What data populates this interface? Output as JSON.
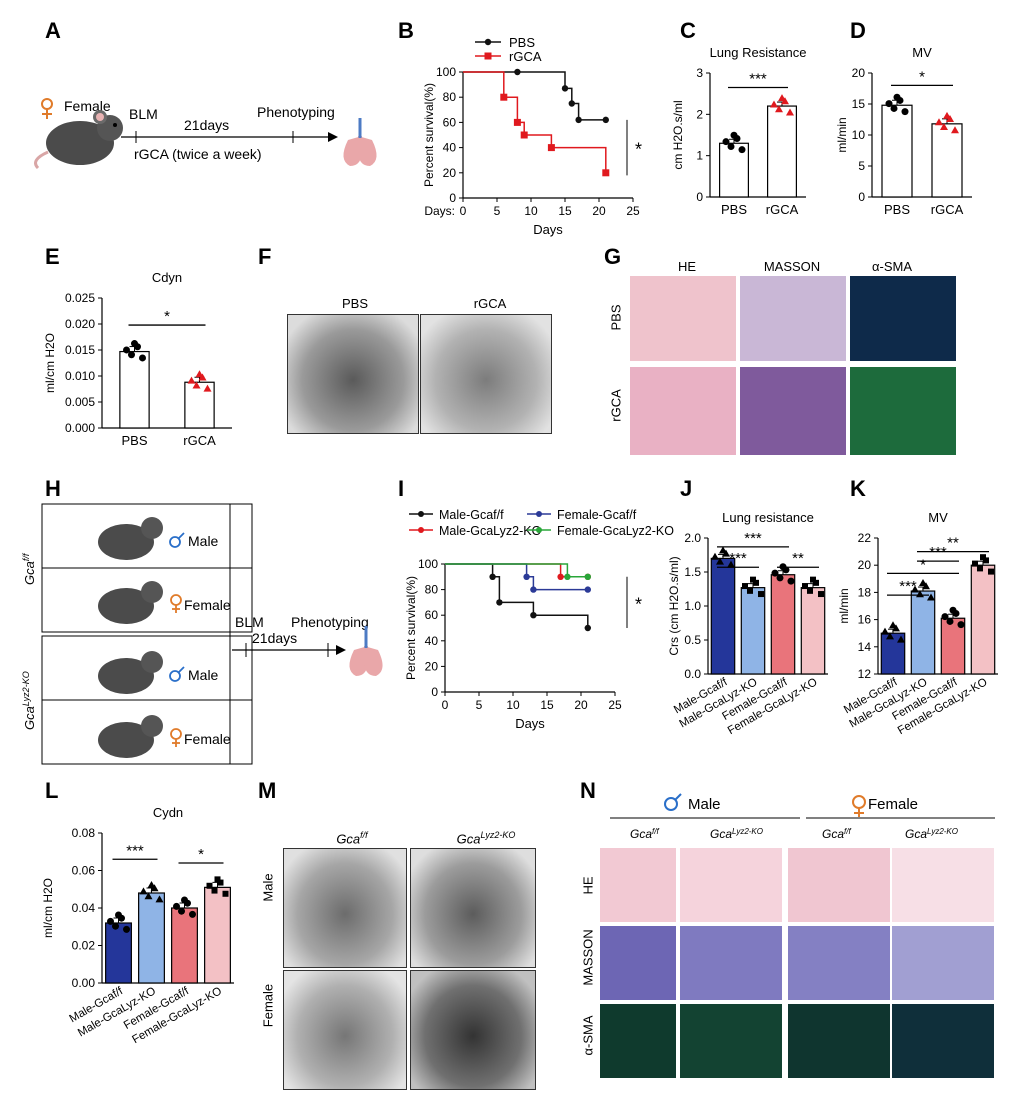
{
  "panels": {
    "A": "A",
    "B": "B",
    "C": "C",
    "D": "D",
    "E": "E",
    "F": "F",
    "G": "G",
    "H": "H",
    "I": "I",
    "J": "J",
    "K": "K",
    "L": "L",
    "M": "M",
    "N": "N"
  },
  "panelA": {
    "sex": "Female",
    "blm": "BLM",
    "duration": "21days",
    "phenotyping": "Phenotyping",
    "treatment": "rGCA (twice a week)"
  },
  "panelB": {
    "chart_data": {
      "type": "line",
      "xlabel": "Days",
      "ylabel": "Percent survival(%)",
      "xprefix": "Days:",
      "xticks": [
        0,
        5,
        10,
        15,
        20,
        25
      ],
      "yticks": [
        0,
        20,
        40,
        60,
        80,
        100
      ],
      "xlim": [
        0,
        25
      ],
      "ylim": [
        0,
        100
      ],
      "series": [
        {
          "name": "PBS",
          "color": "#111111",
          "x": [
            0,
            8,
            15,
            16,
            17,
            21
          ],
          "y": [
            100,
            100,
            87,
            75,
            62,
            62
          ]
        },
        {
          "name": "rGCA",
          "color": "#e0191e",
          "x": [
            0,
            6,
            8,
            9,
            13,
            21
          ],
          "y": [
            100,
            80,
            60,
            50,
            40,
            20
          ]
        }
      ],
      "significance": "*"
    }
  },
  "panelC": {
    "chart_data": {
      "type": "bar",
      "title": "Lung Resistance",
      "ylabel": "cm H2O.s/ml",
      "categories": [
        "PBS",
        "rGCA"
      ],
      "values": [
        1.3,
        2.2
      ],
      "ylim": [
        0,
        3
      ],
      "yticks": [
        0,
        1,
        2,
        3
      ],
      "significance": "***"
    }
  },
  "panelD": {
    "chart_data": {
      "type": "bar",
      "title": "MV",
      "ylabel": "ml/min",
      "categories": [
        "PBS",
        "rGCA"
      ],
      "values": [
        14.8,
        11.8
      ],
      "ylim": [
        0,
        20
      ],
      "yticks": [
        0,
        5,
        10,
        15,
        20
      ],
      "significance": "*"
    }
  },
  "panelE": {
    "chart_data": {
      "type": "bar",
      "title": "Cdyn",
      "ylabel": "ml/cm H2O",
      "categories": [
        "PBS",
        "rGCA"
      ],
      "values": [
        0.0147,
        0.0088
      ],
      "ylim": [
        0,
        0.025
      ],
      "yticks": [
        "0.000",
        "0.005",
        "0.010",
        "0.015",
        "0.020",
        "0.025"
      ],
      "significance": "*"
    }
  },
  "panelF": {
    "labels": [
      "PBS",
      "rGCA"
    ]
  },
  "panelG": {
    "cols": [
      "HE",
      "MASSON",
      "α-SMA"
    ],
    "rows": [
      "PBS",
      "rGCA"
    ]
  },
  "panelH": {
    "genotypes": [
      "Gca",
      "Gca"
    ],
    "sup": [
      "f/f",
      "Lyz2-KO"
    ],
    "male": "Male",
    "female": "Female",
    "blm": "BLM",
    "duration": "21days",
    "phenotyping": "Phenotyping"
  },
  "panelI": {
    "chart_data": {
      "type": "line",
      "xlabel": "Days",
      "ylabel": "Percent survival(%)",
      "xticks": [
        0,
        5,
        10,
        15,
        20,
        25
      ],
      "yticks": [
        0,
        20,
        40,
        60,
        80,
        100
      ],
      "xlim": [
        0,
        25
      ],
      "ylim": [
        0,
        100
      ],
      "series": [
        {
          "name": "Male-Gcaf/f",
          "color": "#111111",
          "x": [
            0,
            7,
            8,
            13,
            21
          ],
          "y": [
            100,
            90,
            70,
            60,
            50
          ]
        },
        {
          "name": "Male-GcaLyz2-KO",
          "color": "#e0191e",
          "x": [
            0,
            17,
            21
          ],
          "y": [
            100,
            90,
            90
          ]
        },
        {
          "name": "Female-Gcaf/f",
          "color": "#2b3a97",
          "x": [
            0,
            12,
            13,
            21
          ],
          "y": [
            100,
            90,
            80,
            80
          ]
        },
        {
          "name": "Female-GcaLyz2-KO",
          "color": "#29a639",
          "x": [
            0,
            18,
            21
          ],
          "y": [
            100,
            90,
            90
          ]
        }
      ],
      "significance": "*"
    }
  },
  "panelJ": {
    "chart_data": {
      "type": "bar",
      "title": "Lung resistance",
      "ylabel": "Crs (cm H2O.s/ml)",
      "categories": [
        "Male-Gcaf/f",
        "Male-GcaLyz-KO",
        "Female-Gcaf/f",
        "Female-GcaLyz-KO"
      ],
      "values": [
        1.7,
        1.27,
        1.46,
        1.27
      ],
      "ylim": [
        0,
        2.0
      ],
      "yticks": [
        "0.0",
        "0.5",
        "1.0",
        "1.5",
        "2.0"
      ],
      "significance": [
        "***",
        "***",
        "**"
      ]
    }
  },
  "panelK": {
    "chart_data": {
      "type": "bar",
      "title": "MV",
      "ylabel": "ml/min",
      "categories": [
        "Male-Gcaf/f",
        "Male-GcaLyz-KO",
        "Female-Gcaf/f",
        "Female-GcaLyz-KO"
      ],
      "values": [
        15.0,
        18.1,
        16.1,
        20.0
      ],
      "ylim": [
        12,
        22
      ],
      "yticks": [
        12,
        14,
        16,
        18,
        20,
        22
      ],
      "significance": [
        "***",
        "*",
        "**",
        "***"
      ]
    }
  },
  "panelL": {
    "chart_data": {
      "type": "bar",
      "title": "Cydn",
      "ylabel": "ml/cm H2O",
      "categories": [
        "Male-Gcaf/f",
        "Male-GcaLyz-KO",
        "Female-Gcaf/f",
        "Female-GcaLyz-KO"
      ],
      "values": [
        0.032,
        0.048,
        0.04,
        0.051
      ],
      "ylim": [
        0,
        0.08
      ],
      "yticks": [
        "0.00",
        "0.02",
        "0.04",
        "0.06",
        "0.08"
      ],
      "significance": [
        "***",
        "*"
      ]
    }
  },
  "panelM": {
    "cols": [
      "Gcaf/f",
      "GcaLyz2-KO"
    ],
    "rows": [
      "Male",
      "Female"
    ]
  },
  "panelN": {
    "groups": [
      "Male",
      "Female"
    ],
    "cols": [
      "Gcaf/f",
      "GcaLyz2-KO",
      "Gcaf/f",
      "GcaLyz2-KO"
    ],
    "rows": [
      "HE",
      "MASSON",
      "α-SMA"
    ]
  },
  "colors": {
    "navy": "#24369a",
    "lightblue": "#8fb4e6",
    "salmon": "#e9747b",
    "pink": "#f3c1c5",
    "red": "#e0191e",
    "blue": "#2a6fc9",
    "orange": "#e07b2a"
  }
}
